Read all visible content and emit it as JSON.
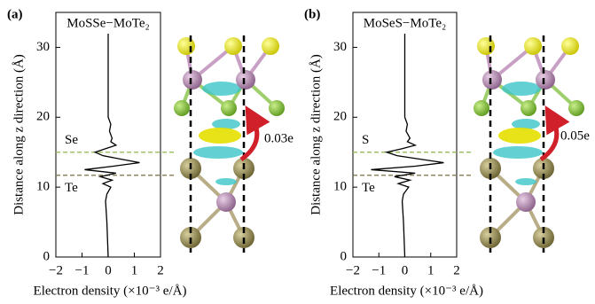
{
  "chart_data": [
    {
      "type": "line",
      "panel_label": "(a)",
      "title": "MoSSe−MoTe₂",
      "xlabel": "Electron density (×10⁻³ e/Å)",
      "ylabel": "Distance along z direction (Å)",
      "xlim": [
        -2,
        2
      ],
      "xticks": [
        {
          "value": -2,
          "label": "−2"
        },
        {
          "value": -1,
          "label": "−1"
        },
        0,
        1,
        2
      ],
      "ylim": [
        0,
        35
      ],
      "yticks": [
        0,
        10,
        20,
        30
      ],
      "y": [
        0,
        5,
        8,
        9,
        10,
        10.5,
        11,
        11.5,
        12,
        12.5,
        13,
        13.5,
        14,
        14.5,
        15,
        15.5,
        16,
        16.5,
        17,
        18,
        19,
        20,
        22,
        25,
        32
      ],
      "series": [
        {
          "color": "#000000",
          "values": [
            0,
            -0.05,
            -0.1,
            -0.05,
            0.1,
            -0.2,
            0.15,
            -0.3,
            0.3,
            -0.9,
            0.2,
            1.2,
            0.5,
            -0.2,
            -0.5,
            -0.1,
            0.3,
            0.1,
            0.15,
            0.05,
            0.1,
            0,
            0,
            0,
            0
          ]
        }
      ],
      "hlines": [
        {
          "label": "Se",
          "value": 15,
          "color": "#8fb84a"
        },
        {
          "label": "Te",
          "value": 11.7,
          "color": "#7d7140"
        }
      ],
      "annotation": "0.03e"
    },
    {
      "type": "line",
      "panel_label": "(b)",
      "title": "MoSeS−MoTe₂",
      "xlabel": "Electron density (×10⁻³ e/Å)",
      "ylabel": "Distance along z direction (Å)",
      "xlim": [
        -2,
        2
      ],
      "xticks": [
        {
          "value": -2,
          "label": "−2"
        },
        {
          "value": -1,
          "label": "−1"
        },
        0,
        1,
        2
      ],
      "ylim": [
        0,
        35
      ],
      "yticks": [
        0,
        10,
        20,
        30
      ],
      "y": [
        0,
        5,
        8,
        9,
        10,
        10.5,
        11,
        11.5,
        12,
        12.5,
        13,
        13.5,
        14,
        14.5,
        15,
        15.5,
        16,
        16.5,
        17,
        18,
        19,
        20,
        22,
        25,
        32
      ],
      "series": [
        {
          "color": "#000000",
          "values": [
            0,
            -0.05,
            -0.1,
            -0.05,
            0.15,
            -0.25,
            0.2,
            -0.4,
            0.4,
            -1.3,
            0.4,
            1.5,
            0.6,
            -0.3,
            -0.7,
            -0.1,
            0.4,
            0.1,
            0.2,
            0.05,
            0.1,
            0,
            0,
            0,
            0
          ]
        }
      ],
      "hlines": [
        {
          "label": "S",
          "value": 15,
          "color": "#8fb84a"
        },
        {
          "label": "Te",
          "value": 11.7,
          "color": "#7d7140"
        }
      ],
      "annotation": "0.05e"
    }
  ]
}
